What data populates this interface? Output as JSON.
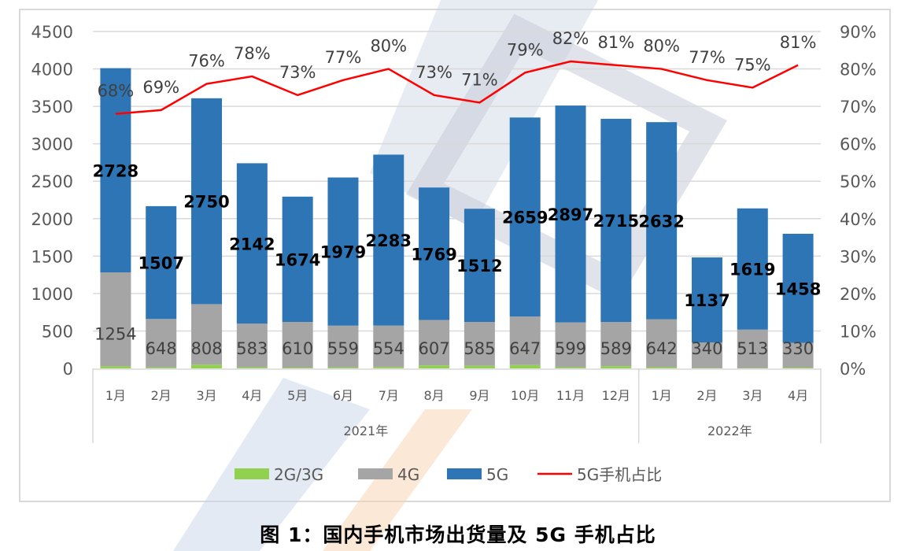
{
  "caption": "图 1：国内手机市场出货量及 5G 手机占比",
  "colors": {
    "g23": "#92d050",
    "g4": "#a5a5a5",
    "g5": "#2e75b6",
    "line": "#ff0000",
    "grid": "#d9d9d9",
    "axis_text": "#595959"
  },
  "legend": [
    {
      "key": "g23",
      "label": "2G/3G",
      "type": "box"
    },
    {
      "key": "g4",
      "label": "4G",
      "type": "box"
    },
    {
      "key": "g5",
      "label": "5G",
      "type": "box"
    },
    {
      "key": "line",
      "label": "5G手机占比",
      "type": "line"
    }
  ],
  "chart_data": {
    "type": "bar",
    "subtype": "stacked bar + line (dual axis)",
    "title": "国内手机市场出货量及 5G 手机占比",
    "categories": [
      "1月",
      "2月",
      "3月",
      "4月",
      "5月",
      "6月",
      "7月",
      "8月",
      "9月",
      "10月",
      "11月",
      "12月",
      "1月",
      "2月",
      "3月",
      "4月"
    ],
    "category_groups": [
      {
        "label": "2021年",
        "start": 0,
        "end": 11
      },
      {
        "label": "2022年",
        "start": 12,
        "end": 15
      }
    ],
    "series": [
      {
        "name": "2G/3G",
        "axis": "left",
        "type": "bar",
        "values": [
          28,
          12,
          50,
          15,
          10,
          12,
          18,
          40,
          35,
          45,
          15,
          30,
          15,
          5,
          5,
          10
        ]
      },
      {
        "name": "4G",
        "axis": "left",
        "type": "bar",
        "values": [
          1254,
          648,
          808,
          583,
          610,
          559,
          554,
          607,
          585,
          647,
          599,
          589,
          642,
          340,
          513,
          330
        ]
      },
      {
        "name": "5G",
        "axis": "left",
        "type": "bar",
        "values": [
          2728,
          1507,
          2750,
          2142,
          1674,
          1979,
          2283,
          1769,
          1512,
          2659,
          2897,
          2715,
          2632,
          1137,
          1619,
          1458
        ]
      },
      {
        "name": "5G手机占比",
        "axis": "right",
        "type": "line",
        "values": [
          68,
          69,
          76,
          78,
          73,
          77,
          80,
          73,
          71,
          79,
          82,
          81,
          80,
          77,
          75,
          81
        ]
      }
    ],
    "xlabel": "",
    "ylabel": "",
    "ylim": [
      0,
      4500
    ],
    "yticks": [
      0,
      500,
      1000,
      1500,
      2000,
      2500,
      3000,
      3500,
      4000,
      4500
    ],
    "y2lim": [
      0,
      90
    ],
    "y2ticks": [
      "0%",
      "10%",
      "20%",
      "30%",
      "40%",
      "50%",
      "60%",
      "70%",
      "80%",
      "90%"
    ],
    "grid": true,
    "legend_position": "bottom"
  }
}
